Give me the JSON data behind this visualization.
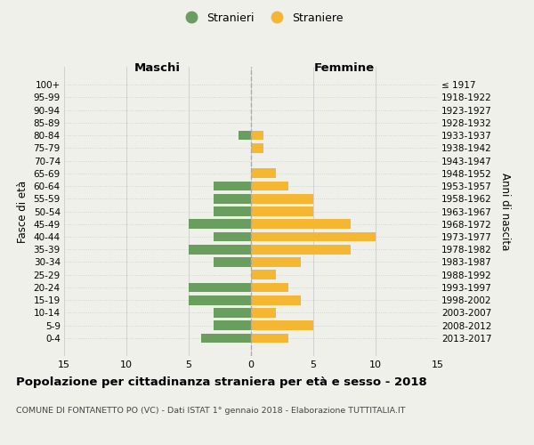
{
  "age_groups": [
    "100+",
    "95-99",
    "90-94",
    "85-89",
    "80-84",
    "75-79",
    "70-74",
    "65-69",
    "60-64",
    "55-59",
    "50-54",
    "45-49",
    "40-44",
    "35-39",
    "30-34",
    "25-29",
    "20-24",
    "15-19",
    "10-14",
    "5-9",
    "0-4"
  ],
  "birth_years": [
    "≤ 1917",
    "1918-1922",
    "1923-1927",
    "1928-1932",
    "1933-1937",
    "1938-1942",
    "1943-1947",
    "1948-1952",
    "1953-1957",
    "1958-1962",
    "1963-1967",
    "1968-1972",
    "1973-1977",
    "1978-1982",
    "1983-1987",
    "1988-1992",
    "1993-1997",
    "1998-2002",
    "2003-2007",
    "2008-2012",
    "2013-2017"
  ],
  "males": [
    0,
    0,
    0,
    0,
    1,
    0,
    0,
    0,
    3,
    3,
    3,
    5,
    3,
    5,
    3,
    0,
    5,
    5,
    3,
    3,
    4
  ],
  "females": [
    0,
    0,
    0,
    0,
    1,
    1,
    0,
    2,
    3,
    5,
    5,
    8,
    10,
    8,
    4,
    2,
    3,
    4,
    2,
    5,
    3
  ],
  "male_color": "#6a9e5e",
  "female_color": "#f5b731",
  "bg_color": "#f0f0eb",
  "grid_color": "#cccccc",
  "center_line_color": "#aaaaaa",
  "title": "Popolazione per cittadinanza straniera per età e sesso - 2018",
  "subtitle": "COMUNE DI FONTANETTO PO (VC) - Dati ISTAT 1° gennaio 2018 - Elaborazione TUTTITALIA.IT",
  "left_label": "Maschi",
  "right_label": "Femmine",
  "y_left_label": "Fasce di età",
  "y_right_label": "Anni di nascita",
  "legend_male": "Stranieri",
  "legend_female": "Straniere",
  "xlim": 15
}
